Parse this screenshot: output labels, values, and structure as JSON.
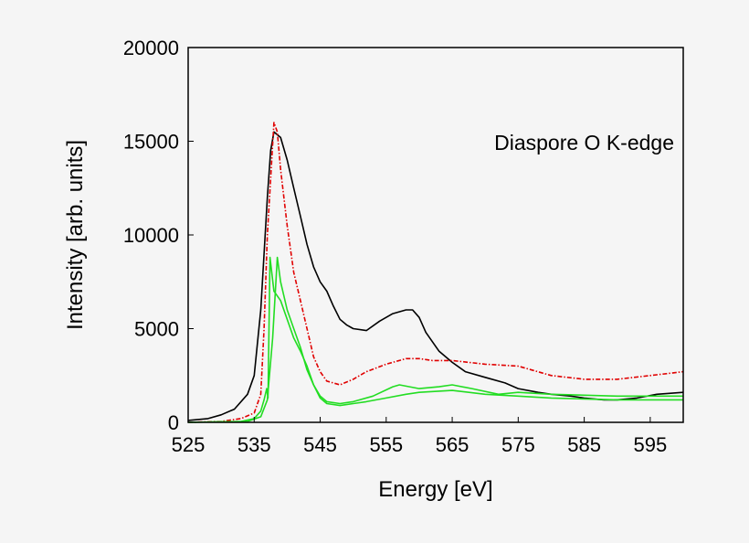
{
  "chart_data": {
    "type": "line",
    "title": "",
    "xlabel": "Energy [eV]",
    "ylabel": "Intensity [arb. units]",
    "xlim": [
      525,
      600
    ],
    "ylim": [
      0,
      20000
    ],
    "xticks": [
      525,
      535,
      545,
      555,
      565,
      575,
      585,
      595
    ],
    "yticks": [
      0,
      5000,
      10000,
      15000,
      20000
    ],
    "grid": false,
    "annotation": "Diaspore O K-edge",
    "series": [
      {
        "color": "#000000",
        "style": "solid",
        "x": [
          525,
          528,
          530,
          532,
          534,
          535,
          536,
          537,
          537.5,
          538,
          539,
          540,
          541,
          542,
          543,
          544,
          545,
          546,
          547,
          548,
          549,
          550,
          552,
          554,
          556,
          558,
          559,
          560,
          561,
          563,
          565,
          567,
          570,
          573,
          575,
          578,
          580,
          583,
          585,
          588,
          590,
          593,
          596,
          600
        ],
        "y": [
          100,
          200,
          400,
          700,
          1500,
          2500,
          6000,
          12000,
          14500,
          15500,
          15200,
          14000,
          12500,
          11000,
          9500,
          8300,
          7500,
          7000,
          6200,
          5500,
          5200,
          5000,
          4900,
          5400,
          5800,
          6000,
          6000,
          5600,
          4800,
          3800,
          3200,
          2700,
          2400,
          2100,
          1800,
          1600,
          1500,
          1400,
          1300,
          1200,
          1200,
          1300,
          1500,
          1600
        ]
      },
      {
        "color": "#e00000",
        "style": "dashdot",
        "x": [
          525,
          530,
          533,
          535,
          536,
          536.5,
          537,
          537.5,
          538,
          538.5,
          539,
          540,
          541,
          542,
          543,
          544,
          545,
          546,
          548,
          550,
          552,
          555,
          558,
          560,
          562,
          565,
          570,
          575,
          580,
          585,
          590,
          595,
          600
        ],
        "y": [
          0,
          50,
          200,
          500,
          1500,
          5000,
          10000,
          13000,
          16000,
          15500,
          13500,
          10500,
          8000,
          6500,
          5000,
          3500,
          2700,
          2200,
          2000,
          2300,
          2700,
          3100,
          3400,
          3400,
          3300,
          3300,
          3100,
          3000,
          2500,
          2300,
          2300,
          2500,
          2700
        ]
      },
      {
        "color": "#22dd22",
        "style": "solid",
        "x": [
          525,
          533,
          535,
          536,
          536.5,
          536.9,
          537.1,
          537.4,
          538,
          539,
          540,
          541,
          542,
          543,
          544,
          545,
          546,
          548,
          550,
          552,
          555,
          558,
          560,
          565,
          570,
          575,
          580,
          590,
          600
        ],
        "y": [
          0,
          50,
          200,
          600,
          1200,
          1800,
          1300,
          8800,
          7000,
          6500,
          5500,
          4500,
          3800,
          3000,
          2000,
          1300,
          1000,
          900,
          1000,
          1100,
          1300,
          1500,
          1600,
          1700,
          1500,
          1400,
          1300,
          1200,
          1200
        ]
      },
      {
        "color": "#22dd22",
        "style": "solid",
        "x": [
          525,
          534,
          536,
          537,
          537.8,
          538.5,
          539,
          540,
          541,
          542,
          543,
          544,
          545,
          546,
          548,
          550,
          553,
          556,
          557,
          560,
          563,
          565,
          568,
          572,
          575,
          580,
          590,
          600
        ],
        "y": [
          0,
          50,
          300,
          1200,
          4500,
          8800,
          7500,
          6000,
          5000,
          4000,
          2800,
          2000,
          1400,
          1100,
          1000,
          1100,
          1400,
          1900,
          2000,
          1800,
          1900,
          2000,
          1800,
          1500,
          1600,
          1500,
          1400,
          1400
        ]
      }
    ]
  }
}
